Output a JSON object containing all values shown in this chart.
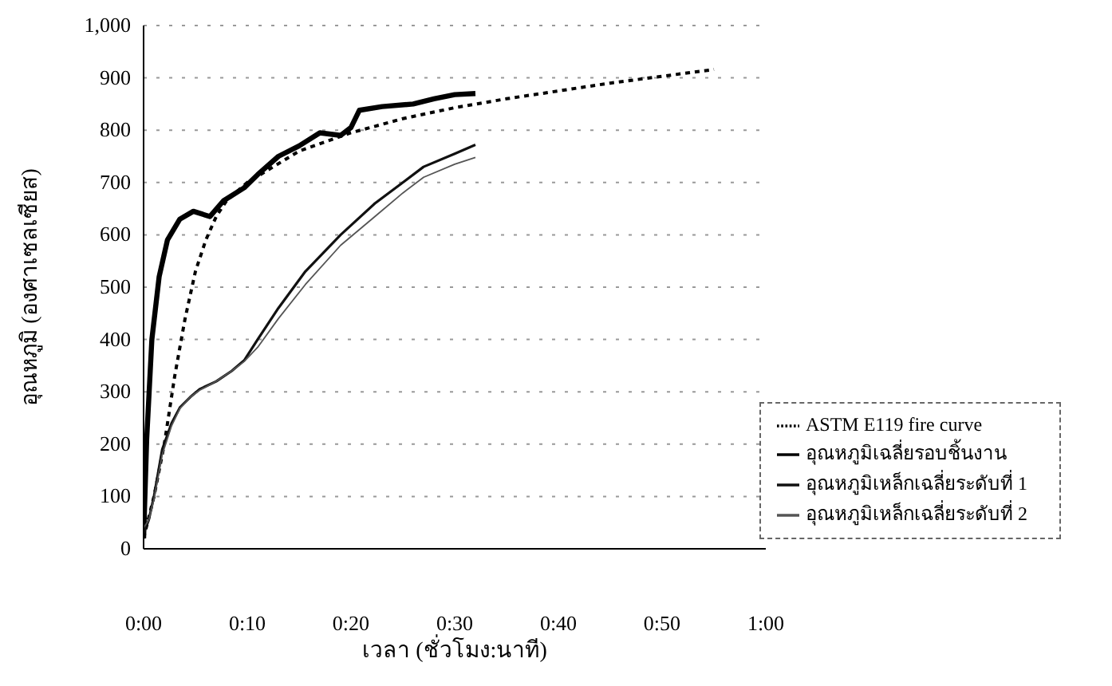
{
  "chart_data": {
    "type": "line",
    "xlabel": "เวลา (ชั่วโมง:นาที)",
    "ylabel": "อุณหภูมิ (องศาเซลเซียส)",
    "xlim": [
      0,
      1
    ],
    "xticks": [
      {
        "value": 0,
        "label": "0:00"
      },
      {
        "value": 0.1667,
        "label": "0:10"
      },
      {
        "value": 0.3333,
        "label": "0:20"
      },
      {
        "value": 0.5,
        "label": "0:30"
      },
      {
        "value": 0.6667,
        "label": "0:40"
      },
      {
        "value": 0.8333,
        "label": "0:50"
      },
      {
        "value": 1,
        "label": "1:00"
      }
    ],
    "ylim": [
      0,
      1000
    ],
    "yticks": [
      0,
      100,
      200,
      300,
      400,
      500,
      600,
      700,
      800,
      900,
      {
        "value": 1000,
        "label": "1,000"
      }
    ],
    "grid": "y",
    "legend": "bottom right",
    "marker": "none",
    "series": [
      {
        "name": "ASTM E119 fire curve",
        "color": "#000000",
        "line_style": "dotted",
        "x": [
          0,
          0.0167,
          0.0333,
          0.05,
          0.0667,
          0.0833,
          0.1,
          0.1167,
          0.1333,
          0.1667,
          0.25,
          0.3333,
          0.4167,
          0.5,
          0.5833,
          0.6667,
          0.75,
          0.8333,
          0.9167
        ],
        "values": [
          20,
          100,
          200,
          330,
          440,
          530,
          590,
          635,
          665,
          700,
          760,
          795,
          822,
          843,
          860,
          875,
          890,
          903,
          916
        ]
      },
      {
        "name": "อุณหภูมิเฉลี่ยรอบชิ้นงาน",
        "color": "#000000",
        "line_style": "solid",
        "x": [
          0,
          0.005,
          0.0133,
          0.025,
          0.0383,
          0.0583,
          0.08,
          0.1067,
          0.1283,
          0.1617,
          0.1833,
          0.2167,
          0.25,
          0.2833,
          0.3167,
          0.3333,
          0.3467,
          0.3833,
          0.4333,
          0.4667,
          0.5,
          0.5333
        ],
        "values": [
          20,
          210,
          400,
          520,
          590,
          630,
          645,
          635,
          665,
          690,
          715,
          750,
          770,
          795,
          790,
          805,
          838,
          845,
          850,
          860,
          868,
          870
        ]
      },
      {
        "name": "อุณหภูมิเหล็กเฉลี่ยระดับที่ 1",
        "color": "#111111",
        "line_style": "solid",
        "x": [
          0,
          0.0083,
          0.0167,
          0.03,
          0.045,
          0.0583,
          0.075,
          0.09,
          0.1167,
          0.1417,
          0.1617,
          0.1833,
          0.2167,
          0.26,
          0.3167,
          0.3717,
          0.4167,
          0.45,
          0.5,
          0.5333
        ],
        "values": [
          30,
          55,
          100,
          190,
          240,
          270,
          290,
          305,
          320,
          340,
          360,
          400,
          460,
          530,
          600,
          660,
          700,
          730,
          755,
          772
        ]
      },
      {
        "name": "อุณหภูมิเหล็กเฉลี่ยระดับที่ 2",
        "color": "#555555",
        "line_style": "solid",
        "x": [
          0,
          0.0083,
          0.0167,
          0.03,
          0.045,
          0.0583,
          0.075,
          0.09,
          0.1167,
          0.1417,
          0.1617,
          0.1833,
          0.2167,
          0.26,
          0.3167,
          0.3717,
          0.4167,
          0.45,
          0.5,
          0.5333
        ],
        "values": [
          40,
          55,
          95,
          180,
          235,
          268,
          290,
          303,
          320,
          340,
          358,
          385,
          440,
          505,
          580,
          635,
          680,
          710,
          735,
          748
        ]
      }
    ]
  }
}
